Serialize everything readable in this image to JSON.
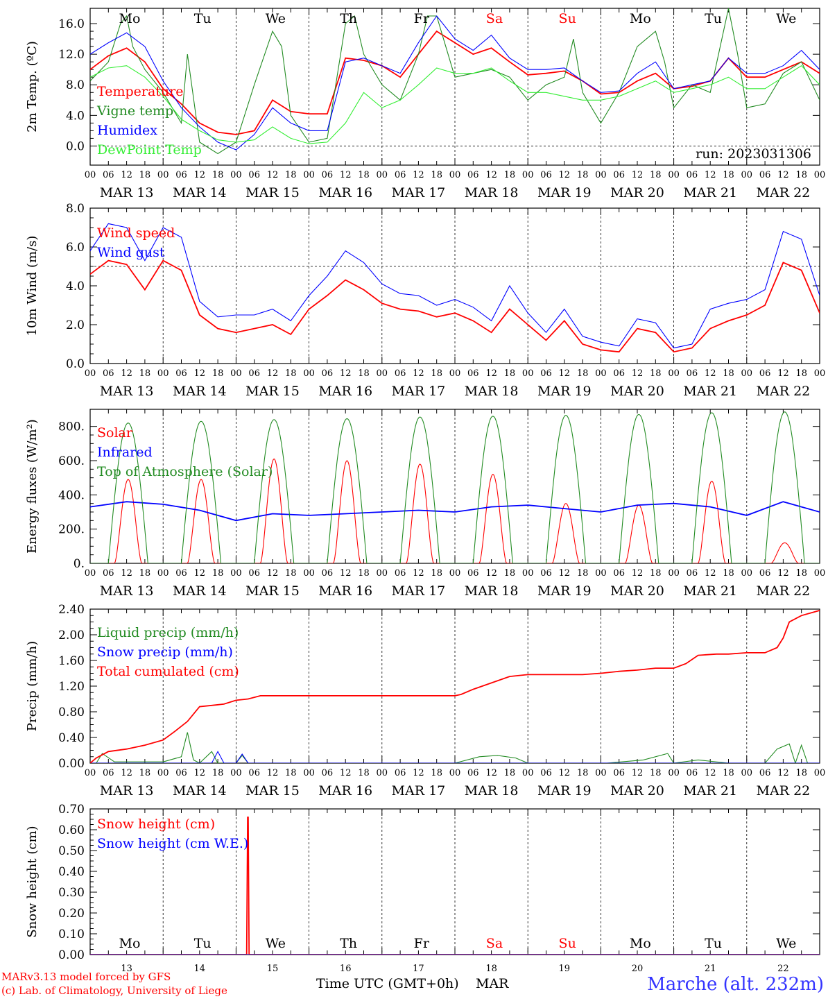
{
  "days": [
    "MAR 13",
    "MAR 14",
    "MAR 15",
    "MAR 16",
    "MAR 17",
    "MAR 18",
    "MAR 19",
    "MAR 20",
    "MAR 21",
    "MAR 22"
  ],
  "weekdays": [
    "Mo",
    "Tu",
    "We",
    "Th",
    "Fr",
    "Sa",
    "Su",
    "Mo",
    "Tu",
    "We"
  ],
  "weekday_colors": [
    "#000000",
    "#000000",
    "#000000",
    "#000000",
    "#000000",
    "#ff0000",
    "#ff0000",
    "#000000",
    "#000000",
    "#000000"
  ],
  "day_numbers": [
    "13",
    "14",
    "15",
    "16",
    "17",
    "18",
    "19",
    "20",
    "21",
    "22"
  ],
  "hour_ticks": [
    "00",
    "06",
    "12",
    "18"
  ],
  "run_label": "run: 2023031306",
  "footer": {
    "model": "MARv3.13 model forced by GFS",
    "lab": "(c) Lab. of Climatology, University of Liege",
    "xlabel": "Time UTC (GMT+0h)",
    "month": "MAR",
    "station": "Marche (alt. 232m)"
  },
  "chart_data": [
    {
      "type": "line",
      "ylabel": "2m Temp. (ºC)",
      "ylim": [
        -2.5,
        18
      ],
      "yticks": [
        0,
        4,
        8,
        12,
        16
      ],
      "ytick_labels": [
        "0.0",
        "4.0",
        "8.0",
        "12.0",
        "16.0"
      ],
      "hline": 0,
      "legend": [
        "Temperature",
        "Vigne temp",
        "Humidex",
        "DewPoint Temp"
      ],
      "series": [
        {
          "name": "Temperature",
          "color": "#ff0000",
          "x": [
            0,
            6,
            12,
            18,
            24,
            30,
            36,
            42,
            48,
            54,
            60,
            66,
            72,
            78,
            84,
            90,
            96,
            102,
            108,
            114,
            120,
            126,
            132,
            138,
            144,
            150,
            156,
            162,
            168,
            174,
            180,
            186,
            192,
            198,
            204,
            210,
            216,
            222,
            228,
            234,
            240
          ],
          "y": [
            10,
            11.8,
            12.8,
            11,
            7.5,
            5.5,
            3,
            1.8,
            1.5,
            2,
            6,
            4.5,
            4.2,
            4.2,
            11.5,
            11.2,
            10.5,
            9,
            12,
            15,
            13.5,
            12,
            12.8,
            11,
            9.3,
            9.5,
            9.8,
            8.5,
            6.8,
            7,
            8.5,
            9.5,
            7.5,
            7.8,
            8.5,
            11.5,
            9,
            9,
            10,
            11,
            9.5
          ]
        },
        {
          "name": "Vigne temp",
          "color": "#228b22",
          "x": [
            0,
            6,
            10,
            12,
            14,
            18,
            24,
            30,
            32,
            36,
            42,
            48,
            54,
            60,
            63,
            66,
            72,
            78,
            84,
            87,
            90,
            96,
            102,
            108,
            111,
            114,
            120,
            126,
            132,
            138,
            144,
            150,
            156,
            159,
            162,
            168,
            174,
            180,
            186,
            189,
            192,
            198,
            204,
            210,
            213,
            216,
            222,
            228,
            234,
            240
          ],
          "y": [
            8.5,
            11,
            16,
            17,
            13,
            10,
            7,
            3,
            12,
            0.5,
            -1,
            0.5,
            8,
            15,
            13,
            4,
            0.5,
            1,
            16,
            17,
            12,
            8,
            6,
            12,
            17,
            17,
            9,
            9.5,
            10,
            9,
            6,
            8,
            9,
            14,
            7,
            3,
            7,
            13,
            15,
            11,
            5,
            8,
            7,
            18,
            12,
            5,
            5.5,
            9.5,
            11,
            6
          ]
        },
        {
          "name": "Humidex",
          "color": "#0000ff",
          "x": [
            0,
            6,
            12,
            18,
            24,
            30,
            36,
            42,
            48,
            54,
            60,
            66,
            72,
            78,
            84,
            90,
            96,
            102,
            108,
            114,
            120,
            126,
            132,
            138,
            144,
            150,
            156,
            162,
            168,
            174,
            180,
            186,
            192,
            198,
            204,
            210,
            216,
            222,
            228,
            234,
            240
          ],
          "y": [
            12,
            13.5,
            14.8,
            13,
            8.5,
            5,
            2.5,
            0.5,
            -0.5,
            1.5,
            5,
            3,
            2,
            2,
            11,
            11.5,
            10.5,
            9.5,
            13.5,
            17,
            14,
            12.5,
            14.5,
            11.5,
            10,
            10,
            10.2,
            8.5,
            7,
            7.2,
            9.5,
            11,
            7.5,
            8,
            8.5,
            11.5,
            9.5,
            9.5,
            10.5,
            12.5,
            10
          ]
        },
        {
          "name": "DewPoint Temp",
          "color": "#33ee33",
          "x": [
            0,
            6,
            12,
            18,
            24,
            30,
            36,
            42,
            48,
            54,
            60,
            66,
            72,
            78,
            84,
            90,
            96,
            102,
            108,
            114,
            120,
            126,
            132,
            138,
            144,
            150,
            156,
            162,
            168,
            174,
            180,
            186,
            192,
            198,
            204,
            210,
            216,
            222,
            228,
            234,
            240
          ],
          "y": [
            9,
            10.2,
            10.5,
            9,
            6.5,
            3.5,
            2,
            0.8,
            0.5,
            0.8,
            2.5,
            1,
            0.3,
            0.5,
            3,
            7,
            5,
            6,
            8,
            10.2,
            9.5,
            9.5,
            10.2,
            8.5,
            7,
            7,
            6.5,
            6,
            6,
            6.5,
            7.5,
            8.5,
            7,
            7.5,
            8,
            9,
            7.5,
            7.5,
            9,
            10.5,
            8
          ]
        }
      ]
    },
    {
      "type": "line",
      "ylabel": "10m Wind (m/s)",
      "ylim": [
        0,
        8
      ],
      "yticks": [
        0,
        2,
        4,
        6,
        8
      ],
      "ytick_labels": [
        "0.0",
        "2.0",
        "4.0",
        "6.0",
        "8.0"
      ],
      "hline": 5,
      "legend": [
        "Wind speed",
        "Wind gust"
      ],
      "series": [
        {
          "name": "Wind speed",
          "color": "#ff0000",
          "x": [
            0,
            6,
            12,
            18,
            24,
            30,
            36,
            42,
            48,
            54,
            60,
            66,
            72,
            78,
            84,
            90,
            96,
            102,
            108,
            114,
            120,
            126,
            132,
            138,
            144,
            150,
            156,
            162,
            168,
            174,
            180,
            186,
            192,
            198,
            204,
            210,
            216,
            222,
            228,
            234,
            240
          ],
          "y": [
            4.6,
            5.3,
            5.1,
            3.8,
            5.3,
            4.8,
            2.5,
            1.8,
            1.6,
            1.8,
            2,
            1.5,
            2.8,
            3.5,
            4.3,
            3.8,
            3.1,
            2.8,
            2.7,
            2.4,
            2.6,
            2.2,
            1.6,
            2.8,
            2,
            1.2,
            2.2,
            1,
            0.7,
            0.6,
            1.8,
            1.6,
            0.6,
            0.8,
            1.8,
            2.2,
            2.5,
            3,
            5.2,
            4.8,
            2.6
          ]
        },
        {
          "name": "Wind gust",
          "color": "#0000ff",
          "x": [
            0,
            6,
            12,
            18,
            24,
            30,
            36,
            42,
            48,
            54,
            60,
            66,
            72,
            78,
            84,
            90,
            96,
            102,
            108,
            114,
            120,
            126,
            132,
            138,
            144,
            150,
            156,
            162,
            168,
            174,
            180,
            186,
            192,
            198,
            204,
            210,
            216,
            222,
            228,
            234,
            240
          ],
          "y": [
            5.8,
            7.2,
            7,
            5.3,
            7,
            6.5,
            3.2,
            2.4,
            2.5,
            2.5,
            2.8,
            2.2,
            3.5,
            4.5,
            5.8,
            5.2,
            4.1,
            3.6,
            3.5,
            3,
            3.3,
            2.9,
            2.2,
            4,
            2.6,
            1.6,
            2.8,
            1.4,
            1.1,
            0.9,
            2.3,
            2.1,
            0.8,
            1,
            2.8,
            3.1,
            3.3,
            3.8,
            6.8,
            6.4,
            3.5
          ]
        }
      ]
    },
    {
      "type": "line",
      "ylabel": "Energy fluxes (W/m²)",
      "ylim": [
        0,
        900
      ],
      "yticks": [
        0,
        200,
        400,
        600,
        800
      ],
      "ytick_labels": [
        "0.",
        "200.",
        "400.",
        "600.",
        "800."
      ],
      "legend": [
        "Solar",
        "Infrared",
        "Top of Atmosphere (Solar)"
      ],
      "series": [
        {
          "name": "Solar",
          "color": "#ff0000",
          "x": [
            0,
            24,
            48,
            72,
            96,
            120,
            144,
            168,
            192,
            216
          ],
          "y": [
            490,
            490,
            610,
            600,
            580,
            520,
            350,
            340,
            480,
            120
          ]
        },
        {
          "name": "Infrared",
          "color": "#0000ff",
          "x": [
            0,
            12,
            24,
            36,
            48,
            60,
            72,
            84,
            96,
            108,
            120,
            132,
            144,
            156,
            168,
            180,
            192,
            204,
            216,
            228,
            240
          ],
          "y": [
            330,
            360,
            345,
            310,
            250,
            290,
            280,
            290,
            300,
            310,
            300,
            330,
            340,
            320,
            300,
            340,
            350,
            330,
            280,
            360,
            300
          ]
        },
        {
          "name": "Top of Atmosphere (Solar)",
          "color": "#228b22",
          "x": [
            0,
            24,
            48,
            72,
            96,
            120,
            144,
            168,
            192,
            216
          ],
          "y": [
            820,
            830,
            840,
            845,
            855,
            860,
            865,
            870,
            880,
            885
          ]
        }
      ]
    },
    {
      "type": "line",
      "ylabel": "Precip (mm/h)",
      "ylim": [
        0,
        2.4
      ],
      "yticks": [
        0,
        0.4,
        0.8,
        1.2,
        1.6,
        2.0,
        2.4
      ],
      "ytick_labels": [
        "0.00",
        "0.40",
        "0.80",
        "1.20",
        "1.60",
        "2.00",
        "2.40"
      ],
      "legend": [
        "Liquid precip (mm/h)",
        "Snow precip (mm/h)",
        "Total cumulated (cm)"
      ],
      "series": [
        {
          "name": "Liquid precip (mm/h)",
          "color": "#228b22",
          "x": [
            0,
            2,
            4,
            8,
            24,
            30,
            32,
            34,
            36,
            40,
            42,
            44,
            48,
            50,
            52,
            54,
            60,
            120,
            128,
            134,
            140,
            144,
            150,
            160,
            170,
            182,
            190,
            192,
            200,
            210,
            216,
            222,
            226,
            230,
            232,
            234,
            236,
            240
          ],
          "y": [
            0,
            0,
            0.15,
            0.02,
            0.02,
            0.1,
            0.48,
            0.05,
            0,
            0.18,
            0,
            0,
            0,
            0.12,
            0,
            0,
            0,
            0,
            0.1,
            0.12,
            0.08,
            0,
            0,
            0,
            0,
            0.05,
            0.15,
            0,
            0.05,
            0,
            0,
            0,
            0.22,
            0.3,
            0,
            0.28,
            0,
            0
          ]
        },
        {
          "name": "Snow precip (mm/h)",
          "color": "#0000ff",
          "x": [
            0,
            40,
            42,
            44,
            48,
            50,
            52,
            54,
            240
          ],
          "y": [
            0,
            0,
            0.18,
            0,
            0,
            0.14,
            0,
            0,
            0
          ]
        },
        {
          "name": "Total cumulated (cm)",
          "color": "#ff0000",
          "x": [
            0,
            2,
            6,
            12,
            18,
            24,
            28,
            32,
            36,
            40,
            44,
            48,
            52,
            56,
            60,
            120,
            122,
            126,
            132,
            138,
            144,
            150,
            156,
            162,
            168,
            174,
            180,
            186,
            192,
            196,
            200,
            206,
            210,
            216,
            222,
            226,
            228,
            230,
            234,
            240
          ],
          "y": [
            0,
            0.08,
            0.18,
            0.22,
            0.28,
            0.36,
            0.5,
            0.65,
            0.88,
            0.9,
            0.92,
            0.98,
            1.0,
            1.05,
            1.05,
            1.05,
            1.07,
            1.15,
            1.25,
            1.35,
            1.38,
            1.38,
            1.38,
            1.38,
            1.4,
            1.43,
            1.45,
            1.48,
            1.48,
            1.55,
            1.68,
            1.7,
            1.7,
            1.72,
            1.72,
            1.8,
            1.95,
            2.2,
            2.3,
            2.38
          ]
        }
      ]
    },
    {
      "type": "line",
      "ylabel": "Snow height (cm)",
      "ylim": [
        0,
        0.7
      ],
      "yticks": [
        0,
        0.1,
        0.2,
        0.3,
        0.4,
        0.5,
        0.6,
        0.7
      ],
      "ytick_labels": [
        "0.00",
        "0.10",
        "0.20",
        "0.30",
        "0.40",
        "0.50",
        "0.60",
        "0.70"
      ],
      "legend": [
        "Snow height (cm)",
        "Snow height (cm W.E.)"
      ],
      "series": [
        {
          "name": "Snow height (cm)",
          "color": "#ff0000",
          "x": [
            0,
            51.5,
            51.8,
            52.0,
            52.3,
            240
          ],
          "y": [
            0,
            0,
            0.66,
            0.66,
            0,
            0
          ]
        },
        {
          "name": "Snow height (cm W.E.)",
          "color": "#0000ff",
          "x": [
            0,
            240
          ],
          "y": [
            0,
            0
          ]
        }
      ]
    }
  ]
}
